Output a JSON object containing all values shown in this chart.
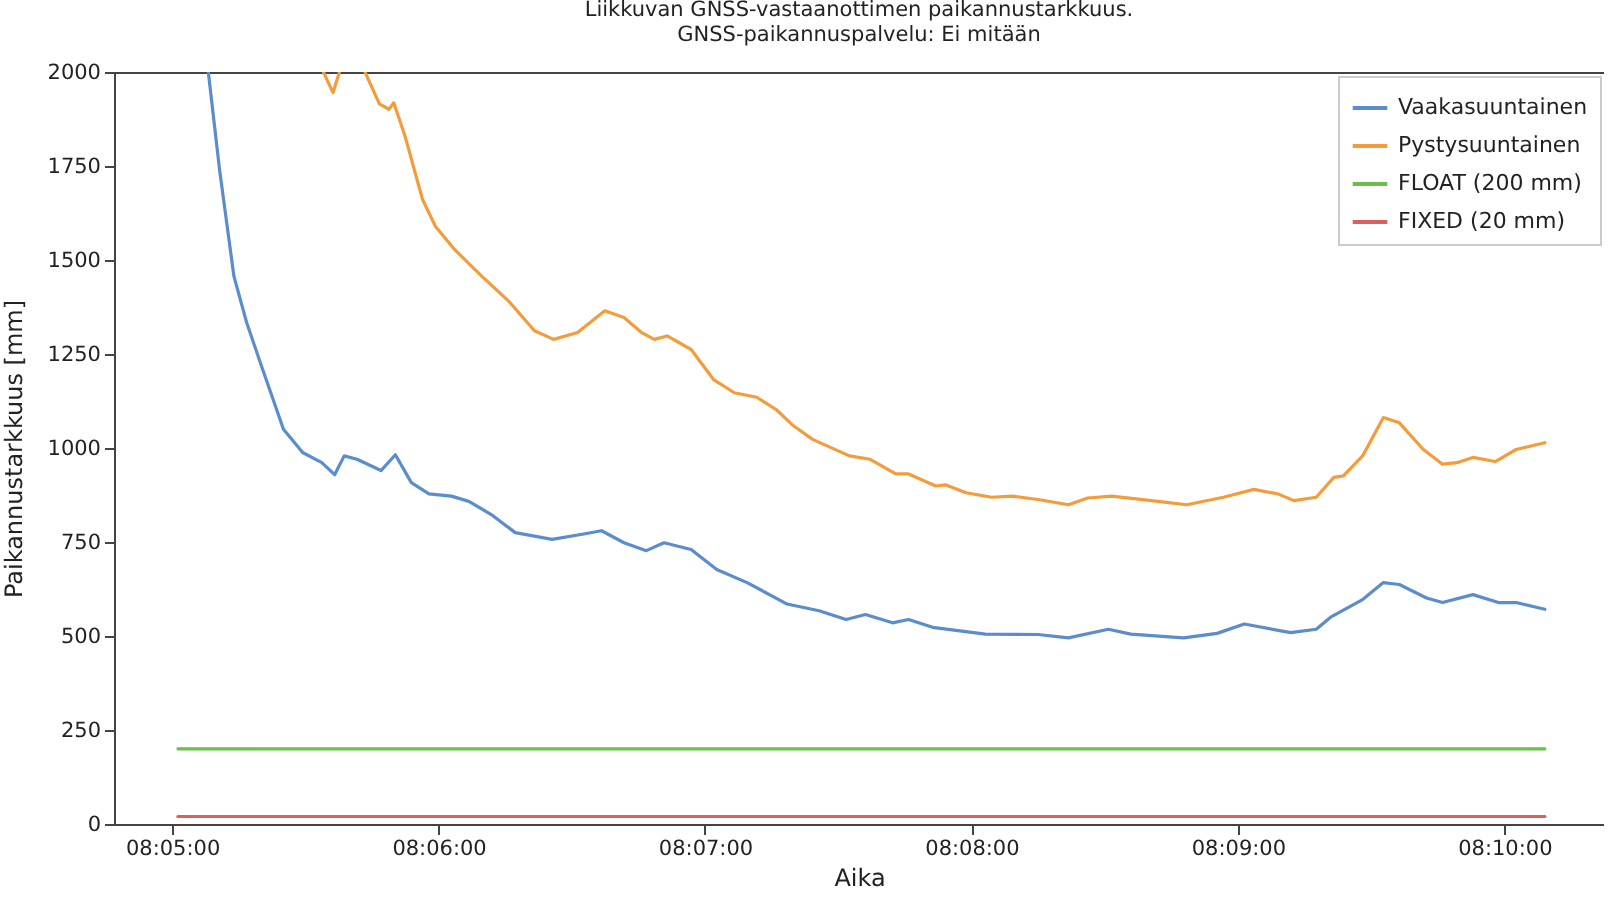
{
  "chart_data": {
    "type": "line",
    "title": "Liikkuvan GNSS-vastaanottimen paikannustarkkuus.",
    "subtitle": "GNSS-paikannuspalvelu: Ei mitään",
    "xlabel": "Aika",
    "ylabel": "Paikannustarkkuus [mm]",
    "xlim": [
      8.0797,
      8.1729
    ],
    "xticks": [
      {
        "value": 8.083333,
        "label": "08:05:00"
      },
      {
        "value": 8.1,
        "label": "08:06:00"
      },
      {
        "value": 8.116667,
        "label": "08:07:00"
      },
      {
        "value": 8.133333,
        "label": "08:08:00"
      },
      {
        "value": 8.15,
        "label": "08:09:00"
      },
      {
        "value": 8.166667,
        "label": "08:10:00"
      }
    ],
    "ylim": [
      0,
      2000
    ],
    "yticks": [
      0,
      250,
      500,
      750,
      1000,
      1250,
      1500,
      1750,
      2000
    ],
    "grid": false,
    "legend": "top right",
    "line_style": "solid",
    "series": [
      {
        "name": "Vaakasuuntainen",
        "color": "#5b8ccc",
        "x": [
          8.0856,
          8.0863,
          8.0872,
          8.088,
          8.089,
          8.0903,
          8.0915,
          8.0927,
          8.0935,
          8.0941,
          8.0949,
          8.0964,
          8.0973,
          8.0983,
          8.0994,
          8.1008,
          8.1019,
          8.1033,
          8.1048,
          8.1071,
          8.1089,
          8.1102,
          8.1116,
          8.113,
          8.1141,
          8.1158,
          8.1174,
          8.1193,
          8.1218,
          8.1238,
          8.1255,
          8.1267,
          8.1284,
          8.1294,
          8.1309,
          8.1342,
          8.1375,
          8.1394,
          8.1419,
          8.1433,
          8.1466,
          8.1487,
          8.1504,
          8.1533,
          8.1549,
          8.1558,
          8.1578,
          8.1591,
          8.1601,
          8.1618,
          8.1628,
          8.1647,
          8.1663,
          8.1674,
          8.1692
        ],
        "values": [
          2000,
          1741,
          1457,
          1333,
          1209,
          1050,
          988,
          961,
          929,
          979,
          970,
          940,
          982,
          908,
          878,
          872,
          858,
          823,
          775,
          757,
          770,
          780,
          748,
          727,
          748,
          730,
          677,
          642,
          585,
          567,
          544,
          557,
          535,
          544,
          523,
          505,
          504,
          495,
          518,
          505,
          495,
          507,
          532,
          509,
          518,
          550,
          597,
          642,
          637,
          601,
          589,
          610,
          589,
          589,
          571
        ]
      },
      {
        "name": "Pystysuuntainen",
        "color": "#f39c3c",
        "x": [
          8.0928,
          8.0934,
          8.0938,
          8.0946,
          8.0954,
          8.0963,
          8.0969,
          8.0972,
          8.0979,
          8.099,
          8.0998,
          8.101,
          8.1027,
          8.1044,
          8.106,
          8.1072,
          8.1087,
          8.1104,
          8.1116,
          8.1127,
          8.1135,
          8.1143,
          8.1158,
          8.1172,
          8.1185,
          8.1199,
          8.1211,
          8.1222,
          8.1234,
          8.1257,
          8.127,
          8.1286,
          8.1294,
          8.1311,
          8.1317,
          8.133,
          8.1346,
          8.1359,
          8.1375,
          8.1394,
          8.1406,
          8.1421,
          8.145,
          8.1468,
          8.1491,
          8.151,
          8.1525,
          8.1535,
          8.1549,
          8.156,
          8.1566,
          8.1578,
          8.1591,
          8.1601,
          8.1616,
          8.1628,
          8.1637,
          8.1647,
          8.1661,
          8.1674,
          8.1692
        ],
        "values": [
          2000,
          1945,
          2000,
          null,
          2000,
          1915,
          1901,
          1918,
          1830,
          1661,
          1590,
          1528,
          1457,
          1390,
          1312,
          1289,
          1307,
          1365,
          1347,
          1307,
          1289,
          1298,
          1262,
          1182,
          1147,
          1135,
          1103,
          1059,
          1023,
          979,
          970,
          931,
          931,
          899,
          902,
          881,
          869,
          872,
          863,
          849,
          867,
          872,
          858,
          849,
          869,
          890,
          878,
          860,
          869,
          922,
          926,
          979,
          1081,
          1067,
          996,
          957,
          961,
          975,
          964,
          996,
          1014
        ]
      },
      {
        "name": "FLOAT (200 mm)",
        "color": "#6cbf4a",
        "x": [
          8.0837,
          8.1692
        ],
        "values": [
          200,
          200
        ]
      },
      {
        "name": "FIXED (20 mm)",
        "color": "#d9605f",
        "x": [
          8.0837,
          8.1692
        ],
        "values": [
          20,
          20
        ]
      }
    ]
  }
}
